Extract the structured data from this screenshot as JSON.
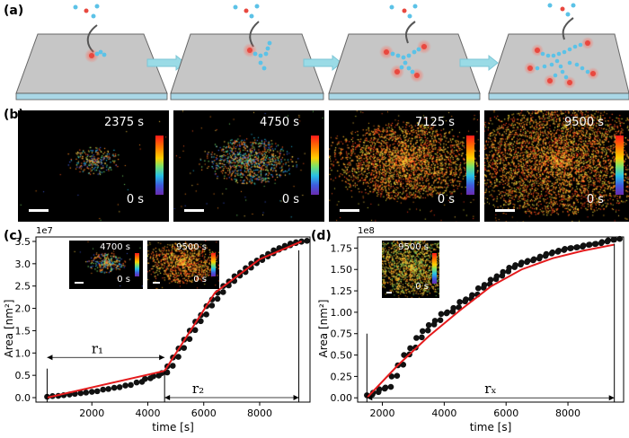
{
  "panel_labels": {
    "a": "(a)",
    "b": "(b)",
    "c": "(c)",
    "d": "(d)"
  },
  "panel_b": {
    "times": [
      "2375 s",
      "4750 s",
      "7125 s",
      "9500 s"
    ],
    "zero": "0 s"
  },
  "panel_c": {
    "insets": [
      {
        "time": "4700 s",
        "zero": "0 s"
      },
      {
        "time": "9500 s",
        "zero": "0 s"
      }
    ],
    "r1": "r₁",
    "r2": "r₂"
  },
  "panel_d": {
    "insets": [
      {
        "time": "9500 s",
        "zero": "0 s"
      }
    ],
    "rx": "rₓ"
  },
  "colors": {
    "data": "#111111",
    "fit": "#e41a1c",
    "arrow": "#9adbe6",
    "molecule": "#5bc2e7",
    "catalyst": "#e8483f"
  },
  "chart_data": [
    {
      "id": "c",
      "type": "scatter",
      "title": "",
      "xlabel": "time [s]",
      "ylabel": "Area [nm²]",
      "offset_label": "1e7",
      "xlim": [
        0,
        9800
      ],
      "ylim": [
        -0.1,
        3.6
      ],
      "xticks": [
        2000,
        4000,
        6000,
        8000
      ],
      "yticks": [
        0.0,
        0.5,
        1.0,
        1.5,
        2.0,
        2.5,
        3.0,
        3.5
      ],
      "ytick_labels": [
        "0.0",
        "0.5",
        "1.0",
        "1.5",
        "2.0",
        "2.5",
        "3.0",
        "3.5"
      ],
      "series": [
        {
          "name": "data",
          "kind": "points",
          "x": [
            400,
            800,
            1200,
            1600,
            2000,
            2400,
            2800,
            3200,
            3600,
            3900,
            4200,
            4500,
            4700,
            4900,
            5100,
            5300,
            5500,
            5700,
            5900,
            6100,
            6300,
            6500,
            6700,
            6900,
            7100,
            7300,
            7500,
            7700,
            7900,
            8100,
            8300,
            8500,
            8700,
            8900,
            9100,
            9300,
            9500
          ],
          "y": [
            0.02,
            0.04,
            0.07,
            0.1,
            0.13,
            0.18,
            0.22,
            0.27,
            0.34,
            0.42,
            0.48,
            0.55,
            0.7,
            0.9,
            1.1,
            1.3,
            1.5,
            1.7,
            1.85,
            2.05,
            2.2,
            2.35,
            2.5,
            2.6,
            2.72,
            2.8,
            2.9,
            3.0,
            3.07,
            3.15,
            3.22,
            3.3,
            3.35,
            3.4,
            3.45,
            3.48,
            3.5
          ]
        },
        {
          "name": "fit",
          "kind": "line",
          "x": [
            400,
            4600,
            6400,
            8000,
            9500
          ],
          "y": [
            0.0,
            0.6,
            2.35,
            3.1,
            3.5
          ]
        }
      ],
      "annotations": [
        {
          "label": "r1",
          "x_start": 400,
          "x_end": 4600,
          "y": 0.9
        },
        {
          "label": "r2",
          "x_start": 4600,
          "x_end": 9400,
          "y": 0.0
        }
      ]
    },
    {
      "id": "d",
      "type": "scatter",
      "title": "",
      "xlabel": "time [s]",
      "ylabel": "Area [nm²]",
      "offset_label": "1e8",
      "xlim": [
        1200,
        9800
      ],
      "ylim": [
        -0.05,
        1.88
      ],
      "xticks": [
        2000,
        4000,
        6000,
        8000
      ],
      "yticks": [
        0.0,
        0.25,
        0.5,
        0.75,
        1.0,
        1.25,
        1.5,
        1.75
      ],
      "ytick_labels": [
        "0.00",
        "0.25",
        "0.50",
        "0.75",
        "1.00",
        "1.25",
        "1.50",
        "1.75"
      ],
      "series": [
        {
          "name": "data",
          "kind": "points",
          "x": [
            1500,
            1700,
            1900,
            2100,
            2300,
            2500,
            2700,
            2900,
            3100,
            3300,
            3500,
            3700,
            3900,
            4100,
            4300,
            4500,
            4700,
            4900,
            5100,
            5300,
            5500,
            5700,
            5900,
            6100,
            6300,
            6500,
            6700,
            6900,
            7100,
            7300,
            7500,
            7700,
            7900,
            8100,
            8300,
            8500,
            8700,
            8900,
            9100,
            9300,
            9500
          ],
          "y": [
            0.03,
            0.06,
            0.1,
            0.12,
            0.25,
            0.38,
            0.5,
            0.58,
            0.7,
            0.78,
            0.85,
            0.9,
            0.98,
            1.0,
            1.05,
            1.12,
            1.15,
            1.2,
            1.28,
            1.32,
            1.38,
            1.42,
            1.47,
            1.52,
            1.55,
            1.58,
            1.6,
            1.62,
            1.65,
            1.68,
            1.7,
            1.72,
            1.74,
            1.75,
            1.76,
            1.78,
            1.79,
            1.8,
            1.82,
            1.84,
            1.85
          ]
        },
        {
          "name": "fit",
          "kind": "line",
          "x": [
            1500,
            2500,
            3500,
            4500,
            5500,
            6500,
            7500,
            8500,
            9500
          ],
          "y": [
            0.0,
            0.38,
            0.72,
            1.02,
            1.3,
            1.5,
            1.63,
            1.72,
            1.79
          ]
        }
      ],
      "annotations": [
        {
          "label": "rx",
          "x_start": 1500,
          "x_end": 9500,
          "y": 0.0
        }
      ]
    }
  ]
}
